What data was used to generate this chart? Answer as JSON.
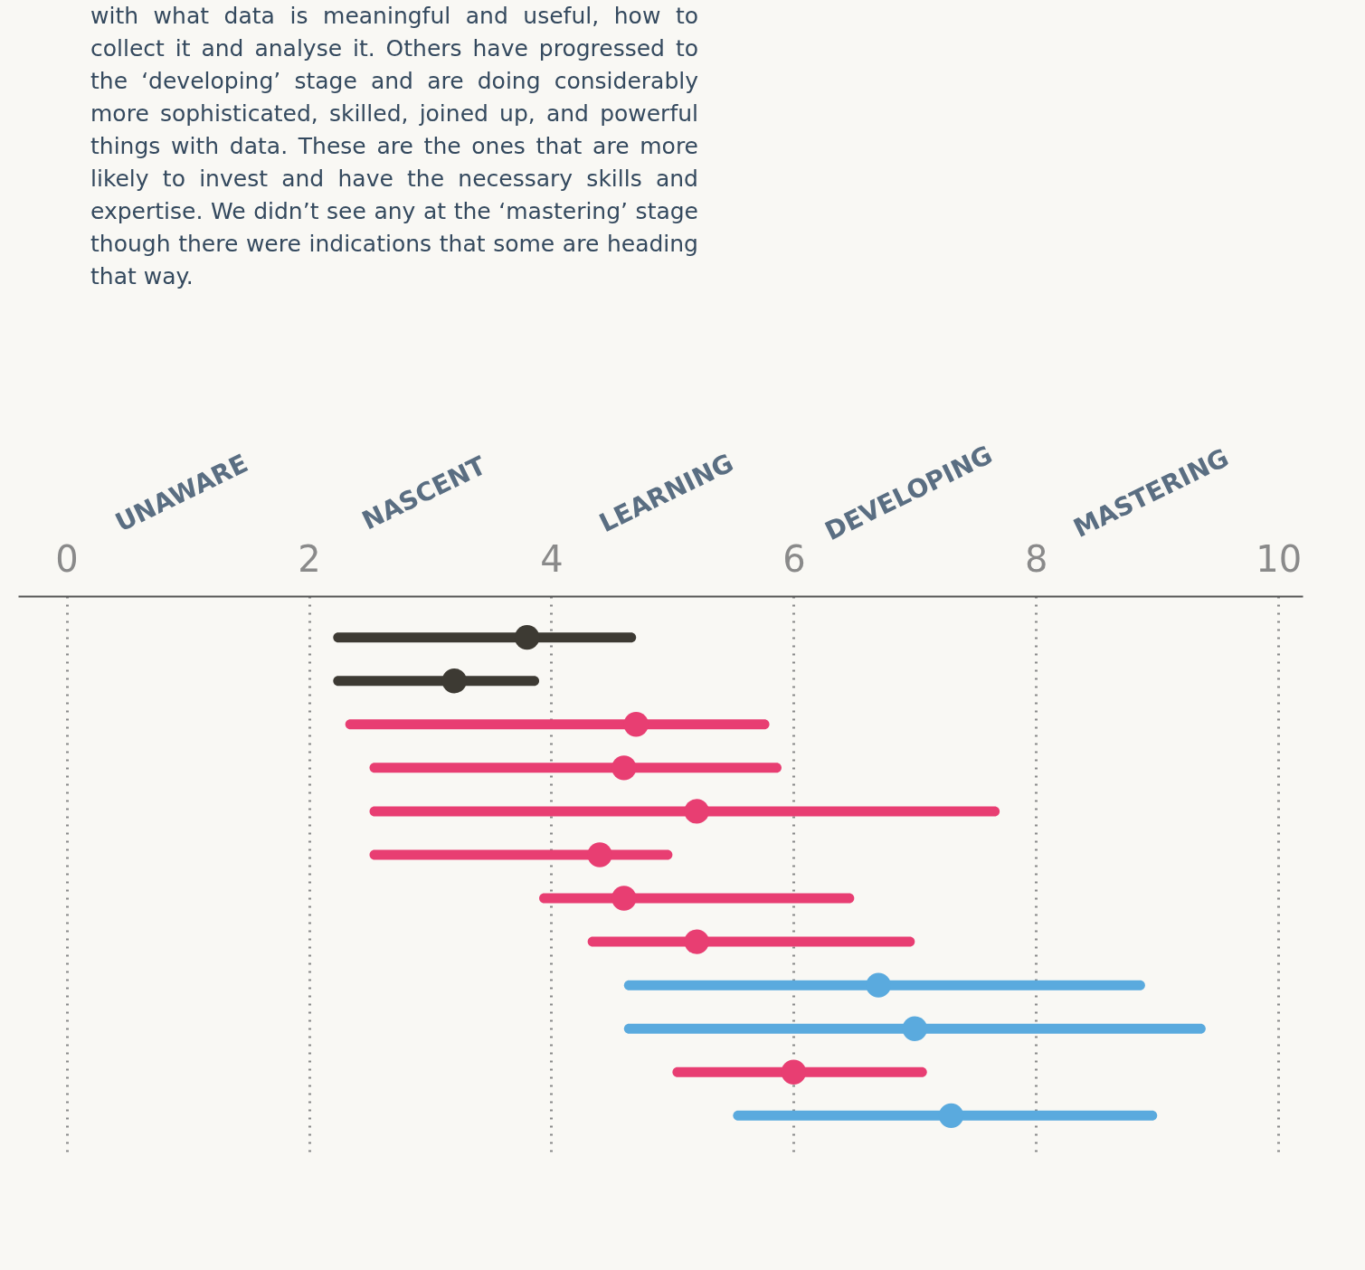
{
  "chart_data": {
    "type": "bar",
    "orientation": "horizontal",
    "categories": [
      null,
      null,
      null,
      null,
      null,
      null,
      null,
      null,
      null,
      null,
      null,
      null
    ],
    "series": [
      {
        "type": "bar",
        "base": [
          2.2,
          2.2,
          2.3,
          2.5,
          2.5,
          2.5,
          3.9,
          4.3,
          4.6,
          4.6,
          5.0,
          5.5
        ],
        "values": [
          2.5,
          1.7,
          3.5,
          3.4,
          5.2,
          2.5,
          2.6,
          2.7,
          4.3,
          4.8,
          2.1,
          3.5
        ],
        "colors": [
          "#3d3a33",
          "#3d3a33",
          "#e83e72",
          "#e83e72",
          "#e83e72",
          "#e83e72",
          "#e83e72",
          "#e83e72",
          "#5aaade",
          "#5aaade",
          "#e83e72",
          "#5aaade"
        ]
      },
      {
        "type": "scatter",
        "values": [
          3.8,
          3.2,
          4.7,
          4.6,
          5.2,
          4.4,
          4.6,
          5.2,
          6.7,
          7.0,
          6.0,
          7.3
        ],
        "colors": [
          "#3d3a33",
          "#3d3a33",
          "#e83e72",
          "#e83e72",
          "#e83e72",
          "#e83e72",
          "#e83e72",
          "#e83e72",
          "#5aaade",
          "#5aaade",
          "#e83e72",
          "#5aaade"
        ]
      }
    ],
    "xlim": [
      -0.4,
      10.2
    ],
    "xticks": [
      0,
      2,
      4,
      6,
      8,
      10
    ],
    "grid": "x",
    "marker": "circle",
    "tick_labels": "x",
    "annotations": [
      "with what data is meaningful and useful, how to collect it and analyse it. Others have progressed to the ‘developing’ stage and are doing considerably more sophisticated, skilled, joined up, and powerful things with data. These are the ones that are more likely to invest and have the necessary skills and expertise. We didn’t see any at the ‘mastering’ stage though there were indications that some are heading that way.",
      "UNAWARE",
      "NASCENT",
      "LEARNING",
      "DEVELOPING",
      "MASTERING"
    ]
  }
}
